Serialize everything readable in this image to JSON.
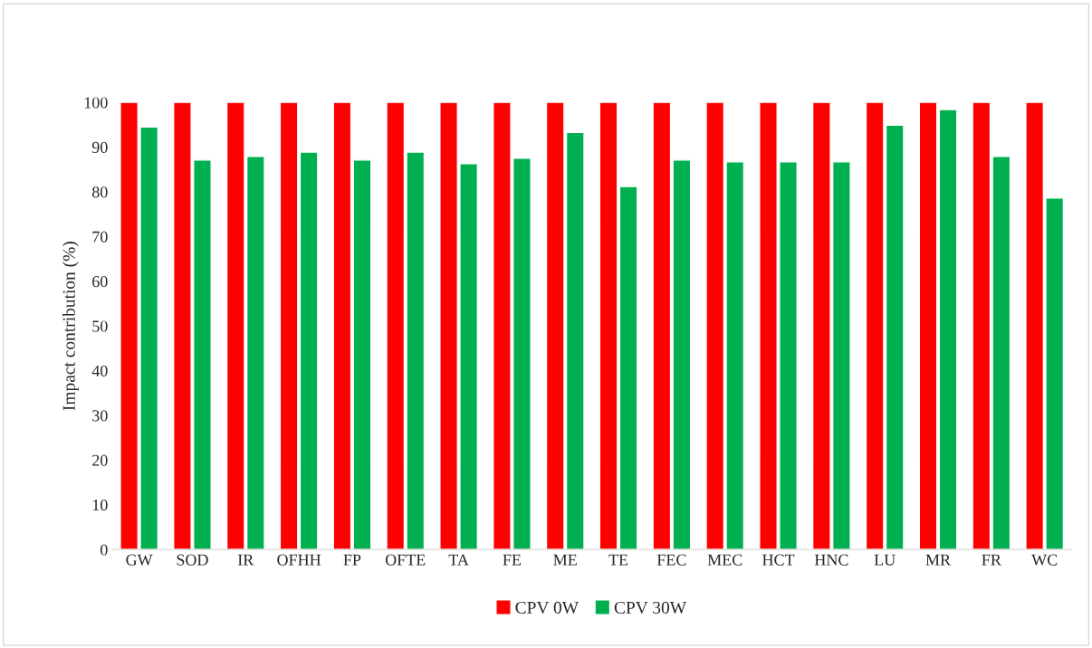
{
  "chart_data": {
    "type": "bar",
    "ylabel": "Impact contribution (%)",
    "categories": [
      "GW",
      "SOD",
      "IR",
      "OFHH",
      "FP",
      "OFTE",
      "TA",
      "FE",
      "ME",
      "TE",
      "FEC",
      "MEC",
      "HCT",
      "HNC",
      "LU",
      "MR",
      "FR",
      "WC"
    ],
    "series": [
      {
        "name": "CPV 0W",
        "color": "#ff0000",
        "values": [
          100,
          100,
          100,
          100,
          100,
          100,
          100,
          100,
          100,
          100,
          100,
          100,
          100,
          100,
          100,
          100,
          100,
          100
        ]
      },
      {
        "name": "CPV 30W",
        "color": "#00b050",
        "values": [
          94.5,
          87.1,
          87.9,
          88.9,
          87.1,
          88.9,
          86.3,
          87.5,
          93.3,
          81.2,
          87.1,
          86.7,
          86.7,
          86.7,
          94.9,
          98.4,
          87.9,
          78.6
        ]
      }
    ],
    "ylim": [
      0,
      100
    ],
    "yticks": [
      0,
      10,
      20,
      30,
      40,
      50,
      60,
      70,
      80,
      90,
      100
    ],
    "grid": false,
    "legend": "bottom"
  }
}
